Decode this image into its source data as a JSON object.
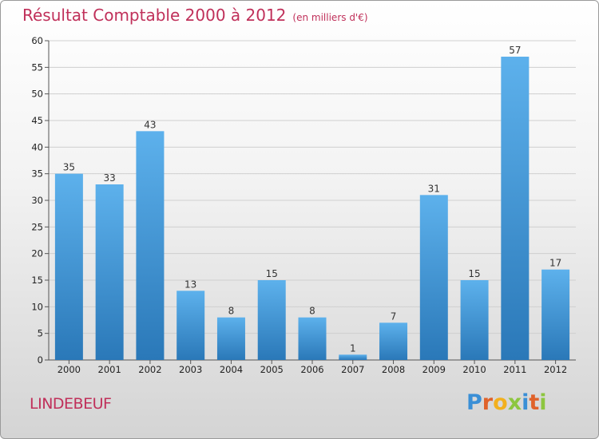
{
  "header": {
    "title": "Résultat Comptable 2000 à 2012",
    "subtitle": "(en milliers d'€)"
  },
  "footer": {
    "city": "LINDEBEUF",
    "brand": "Proxiti"
  },
  "colors": {
    "title": "#c0305a",
    "bar_top": "#5db1ec",
    "bar_bottom": "#2a78b8",
    "grid": "#cfcfcf",
    "axis": "#555555"
  },
  "chart_data": {
    "type": "bar",
    "categories": [
      "2000",
      "2001",
      "2002",
      "2003",
      "2004",
      "2005",
      "2006",
      "2007",
      "2008",
      "2009",
      "2010",
      "2011",
      "2012"
    ],
    "values": [
      35,
      33,
      43,
      13,
      8,
      15,
      8,
      1,
      7,
      31,
      15,
      57,
      17
    ],
    "title": "Résultat Comptable 2000 à 2012",
    "subtitle": "(en milliers d'€)",
    "ylim": [
      0,
      60
    ],
    "yticks": [
      0,
      5,
      10,
      15,
      20,
      25,
      30,
      35,
      40,
      45,
      50,
      55,
      60
    ],
    "grid": true,
    "data_labels": true
  }
}
